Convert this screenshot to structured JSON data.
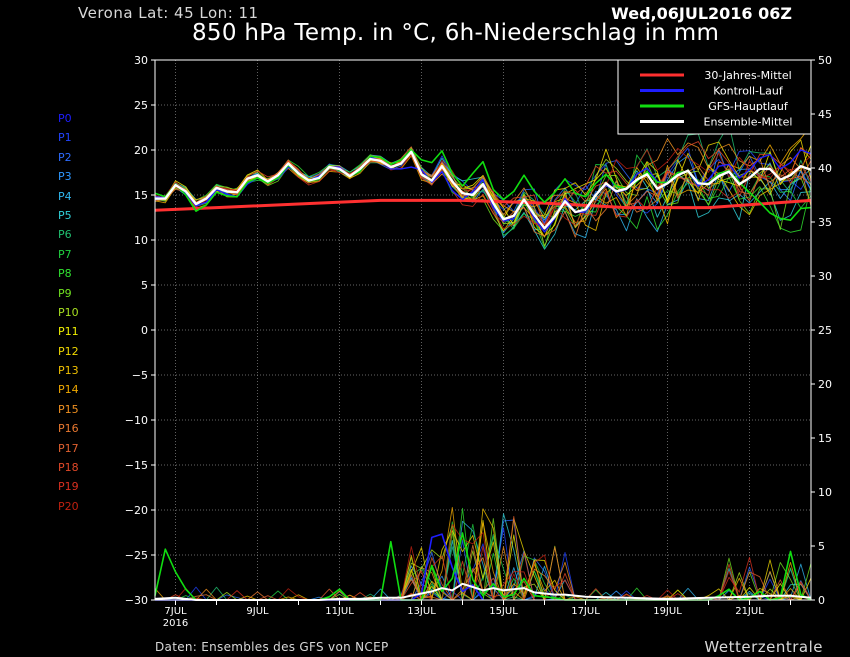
{
  "header": {
    "location": "Verona   Lat: 45 Lon: 11",
    "run": "Wed,06JUL2016 06Z",
    "title": "850 hPa Temp. in °C, 6h-Niederschlag in mm"
  },
  "footer": {
    "credit": "Daten: Ensembles des GFS von NCEP",
    "brand": "Wetterzentrale"
  },
  "members": [
    {
      "label": "P0",
      "color": "#1e1eff"
    },
    {
      "label": "P1",
      "color": "#2244ff"
    },
    {
      "label": "P2",
      "color": "#2e6cff"
    },
    {
      "label": "P3",
      "color": "#2e98ff"
    },
    {
      "label": "P4",
      "color": "#30b8f0"
    },
    {
      "label": "P5",
      "color": "#30d0d8"
    },
    {
      "label": "P6",
      "color": "#20c070"
    },
    {
      "label": "P7",
      "color": "#20d040"
    },
    {
      "label": "P8",
      "color": "#30e030"
    },
    {
      "label": "P9",
      "color": "#70e020"
    },
    {
      "label": "P10",
      "color": "#a8e020"
    },
    {
      "label": "P11",
      "color": "#f0f000"
    },
    {
      "label": "P12",
      "color": "#f0d800"
    },
    {
      "label": "P13",
      "color": "#f0c000"
    },
    {
      "label": "P14",
      "color": "#f0a800"
    },
    {
      "label": "P15",
      "color": "#f09020"
    },
    {
      "label": "P16",
      "color": "#e87830"
    },
    {
      "label": "P17",
      "color": "#e06030"
    },
    {
      "label": "P18",
      "color": "#e04828"
    },
    {
      "label": "P19",
      "color": "#d83020"
    },
    {
      "label": "P20",
      "color": "#c02010"
    }
  ],
  "chart_data": {
    "type": "line",
    "x_axis": {
      "unit": "day",
      "range": [
        6.5,
        22.5
      ],
      "ticks": [
        {
          "day": 7,
          "label": "7JUL",
          "sublabel": "2016"
        },
        {
          "day": 9,
          "label": "9JUL"
        },
        {
          "day": 11,
          "label": "11JUL"
        },
        {
          "day": 13,
          "label": "13JUL"
        },
        {
          "day": 15,
          "label": "15JUL"
        },
        {
          "day": 17,
          "label": "17JUL"
        },
        {
          "day": 19,
          "label": "19JUL"
        },
        {
          "day": 21,
          "label": "21JUL"
        }
      ]
    },
    "y_axis_left": {
      "range": [
        -30,
        30
      ],
      "ticks": [
        -30,
        -25,
        -20,
        -15,
        -10,
        -5,
        0,
        5,
        10,
        15,
        20,
        25,
        30
      ]
    },
    "y_axis_right": {
      "range": [
        0,
        50
      ],
      "ticks": [
        0,
        5,
        10,
        15,
        20,
        25,
        30,
        35,
        40,
        45,
        50
      ]
    },
    "grid": true,
    "legend": {
      "position": "top-right",
      "entries": [
        {
          "label": "30-Jahres-Mittel",
          "color": "#ff3030"
        },
        {
          "label": "Kontroll-Lauf",
          "color": "#1e1eff"
        },
        {
          "label": "GFS-Hauptlauf",
          "color": "#10dd10"
        },
        {
          "label": "Ensemble-Mittel",
          "color": "#ffffff"
        }
      ]
    },
    "temperature": {
      "climate_mean": {
        "x": [
          6.5,
          8,
          10,
          12,
          14,
          16,
          18,
          20,
          22.5
        ],
        "y": [
          13.3,
          13.6,
          14.0,
          14.4,
          14.4,
          14.1,
          13.6,
          13.6,
          14.4
        ]
      },
      "ensemble_mean": {
        "x": [
          6.5,
          6.75,
          7.0,
          7.25,
          7.5,
          7.75,
          8.0,
          8.25,
          8.5,
          8.75,
          9.0,
          9.25,
          9.5,
          9.75,
          10.0,
          10.25,
          10.5,
          10.75,
          11.0,
          11.25,
          11.5,
          11.75,
          12.0,
          12.25,
          12.5,
          12.75,
          13.0,
          13.25,
          13.5,
          13.75,
          14.0,
          14.25,
          14.5,
          14.75,
          15.0,
          15.25,
          15.5,
          15.75,
          16.0,
          16.25,
          16.5,
          16.75,
          17.0,
          17.25,
          17.5,
          17.75,
          18.0,
          18.25,
          18.5,
          18.75,
          19.0,
          19.25,
          19.5,
          19.75,
          20.0,
          20.25,
          20.5,
          20.75,
          21.0,
          21.25,
          21.5,
          21.75,
          22.0,
          22.25,
          22.5
        ],
        "y": [
          14.6,
          14.6,
          16.1,
          15.4,
          14.0,
          14.6,
          15.8,
          15.4,
          15.3,
          16.8,
          17.2,
          16.5,
          17.2,
          18.5,
          17.4,
          16.6,
          16.9,
          18.1,
          17.9,
          17.1,
          17.9,
          19.0,
          18.8,
          18.1,
          18.5,
          19.8,
          17.3,
          16.6,
          18.2,
          16.5,
          15.2,
          15.0,
          16.2,
          14.1,
          12.3,
          12.7,
          14.5,
          12.8,
          11.3,
          12.6,
          14.3,
          13.1,
          13.4,
          15.0,
          16.3,
          15.4,
          15.7,
          16.7,
          17.3,
          15.7,
          16.3,
          17.2,
          17.7,
          16.3,
          16.2,
          17.1,
          17.6,
          16.2,
          16.9,
          17.9,
          17.9,
          16.7,
          17.2,
          18.2,
          17.8
        ]
      },
      "gfs_main": {
        "x": [
          6.5,
          6.75,
          7.0,
          7.25,
          7.5,
          7.75,
          8.0,
          8.25,
          8.5,
          8.75,
          9.0,
          9.25,
          9.5,
          9.75,
          10.0,
          10.25,
          10.5,
          10.75,
          11.0,
          11.25,
          11.5,
          11.75,
          12.0,
          12.25,
          12.5,
          12.75,
          13.0,
          13.25,
          13.5,
          13.75,
          14.0,
          14.25,
          14.5,
          14.75,
          15.0,
          15.25,
          15.5,
          15.75,
          16.0,
          16.25,
          16.5,
          16.75,
          17.0,
          17.25,
          17.5,
          17.75,
          18.0,
          18.25,
          18.5,
          18.75,
          19.0,
          19.25,
          19.5,
          19.75,
          20.0,
          20.25,
          20.5,
          20.75,
          21.0,
          21.25,
          21.5,
          21.75,
          22.0,
          22.25,
          22.5
        ],
        "y": [
          15.2,
          14.8,
          16.2,
          15.0,
          13.2,
          13.9,
          15.3,
          14.9,
          14.8,
          16.4,
          16.9,
          16.3,
          16.9,
          18.3,
          17.3,
          16.5,
          16.8,
          18.0,
          17.9,
          17.1,
          17.6,
          19.3,
          19.2,
          18.4,
          18.9,
          20.0,
          18.9,
          18.6,
          19.9,
          17.4,
          16.0,
          17.4,
          18.7,
          15.6,
          14.5,
          15.4,
          17.2,
          15.4,
          14.2,
          15.3,
          16.8,
          15.2,
          14.8,
          16.3,
          17.3,
          16.0,
          15.7,
          16.5,
          17.6,
          16.4,
          16.4,
          17.5,
          17.6,
          16.3,
          16.3,
          17.4,
          17.7,
          16.4,
          15.3,
          14.2,
          13.0,
          12.4,
          12.2,
          13.5,
          13.6
        ]
      },
      "control": {
        "x": [
          6.5,
          6.75,
          7.0,
          7.25,
          7.5,
          7.75,
          8.0,
          8.25,
          8.5,
          8.75,
          9.0,
          9.25,
          9.5,
          9.75,
          10.0,
          10.25,
          10.5,
          10.75,
          11.0,
          11.25,
          11.5,
          11.75,
          12.0,
          12.25,
          12.5,
          12.75,
          13.0,
          13.25,
          13.5,
          13.75,
          14.0,
          14.25,
          14.5,
          14.75,
          15.0,
          15.25,
          15.5,
          15.75,
          16.0,
          16.25,
          16.5,
          16.75,
          17.0,
          17.25,
          17.5,
          17.75,
          18.0,
          18.25,
          18.5,
          18.75,
          19.0,
          19.25,
          19.5,
          19.75,
          20.0,
          20.25,
          20.5,
          20.75,
          21.0,
          21.25,
          21.5,
          21.75,
          22.0,
          22.25,
          22.5
        ],
        "y": [
          14.8,
          14.7,
          16.2,
          15.2,
          13.8,
          14.2,
          15.6,
          15.1,
          14.8,
          16.2,
          16.9,
          16.4,
          16.8,
          18.1,
          17.5,
          16.6,
          17.1,
          18.1,
          18.1,
          17.1,
          17.6,
          19.2,
          18.8,
          17.9,
          17.9,
          18.1,
          17.8,
          16.4,
          17.6,
          15.5,
          14.5,
          15.4,
          16.7,
          13.6,
          12.1,
          12.4,
          14.6,
          12.4,
          10.9,
          12.4,
          14.6,
          13.1,
          13.1,
          15.1,
          16.1,
          15.3,
          15.6,
          17.3,
          18.0,
          16.5,
          16.3,
          17.5,
          17.6,
          16.0,
          16.7,
          18.2,
          18.4,
          16.9,
          17.8,
          19.1,
          19.5,
          17.9,
          18.6,
          20.0,
          19.6
        ]
      }
    },
    "precipitation": {
      "gfs_main": {
        "x": [
          6.5,
          6.75,
          7.0,
          7.25,
          7.5,
          10.5,
          10.75,
          11.0,
          11.25,
          11.5,
          12.0,
          12.25,
          12.5,
          12.75,
          13.0,
          13.25,
          13.5,
          13.75,
          14.0,
          14.25,
          14.5,
          14.75,
          15.0,
          15.25,
          15.5,
          15.75,
          16.0,
          16.25,
          16.5,
          20.0,
          20.25,
          20.5,
          20.75,
          21.0,
          21.25,
          21.5,
          21.75,
          22.0,
          22.25,
          22.5
        ],
        "y": [
          0.4,
          4.7,
          2.6,
          1.0,
          0.0,
          0.0,
          0.3,
          1.0,
          0.0,
          0.0,
          0.0,
          5.4,
          0.0,
          0.0,
          0.0,
          3.2,
          0.8,
          2.0,
          6.2,
          1.9,
          0.4,
          1.5,
          0.3,
          0.5,
          2.0,
          0.4,
          0.3,
          0.2,
          0.0,
          0.0,
          0.4,
          1.0,
          0.0,
          0.2,
          0.8,
          0.0,
          0.2,
          4.5,
          0.5,
          0.0
        ]
      },
      "control": {
        "x": [
          6.5,
          12.75,
          13.0,
          13.25,
          13.5,
          13.75,
          14.0,
          14.25,
          14.5
        ],
        "y": [
          0.0,
          0.0,
          0.6,
          5.8,
          6.1,
          3.0,
          0.8,
          1.4,
          0.0
        ]
      },
      "ensemble_mean": {
        "x": [
          6.5,
          7.0,
          7.5,
          8.0,
          8.5,
          9.0,
          9.5,
          10.0,
          10.5,
          11.0,
          11.5,
          12.0,
          12.5,
          13.0,
          13.25,
          13.5,
          13.75,
          14.0,
          14.25,
          14.5,
          14.75,
          15.0,
          15.25,
          15.5,
          15.75,
          16.0,
          16.25,
          16.5,
          17.0,
          18.0,
          19.0,
          20.0,
          21.0,
          21.5,
          22.0,
          22.5
        ],
        "y": [
          0.1,
          0.2,
          0.0,
          0.0,
          0.0,
          0.0,
          0.0,
          0.0,
          0.0,
          0.1,
          0.1,
          0.2,
          0.2,
          0.6,
          0.8,
          1.1,
          0.9,
          1.5,
          1.2,
          0.9,
          1.1,
          0.9,
          1.0,
          1.1,
          0.7,
          0.6,
          0.5,
          0.5,
          0.3,
          0.2,
          0.1,
          0.2,
          0.3,
          0.4,
          0.4,
          0.2
        ]
      }
    }
  }
}
